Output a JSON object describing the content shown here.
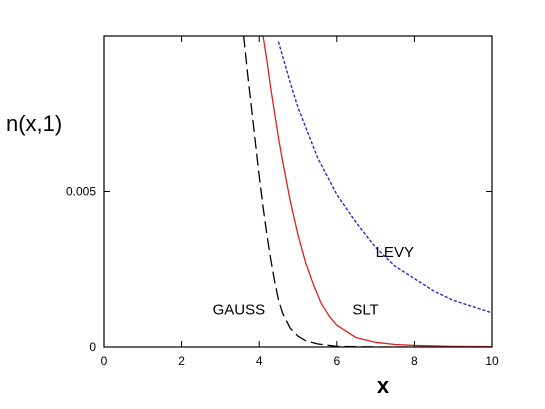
{
  "chart_data": {
    "type": "line",
    "title": "",
    "xlabel": "x",
    "ylabel": "n(x,1)",
    "xlim": [
      0,
      10
    ],
    "ylim": [
      0,
      0.01
    ],
    "grid": false,
    "x_ticks": [
      {
        "value": 0,
        "label": "0"
      },
      {
        "value": 2,
        "label": "2"
      },
      {
        "value": 4,
        "label": "4"
      },
      {
        "value": 6,
        "label": "6"
      },
      {
        "value": 8,
        "label": "8"
      },
      {
        "value": 10,
        "label": "10"
      }
    ],
    "y_ticks": [
      {
        "value": 0,
        "label": "0"
      },
      {
        "value": 0.005,
        "label": "0.005"
      }
    ],
    "series": [
      {
        "name": "GAUSS",
        "color": "#000000",
        "style": "dashed",
        "x": [
          3.6,
          3.7,
          3.8,
          3.9,
          4.0,
          4.1,
          4.2,
          4.3,
          4.4,
          4.5,
          4.6,
          4.8,
          5.0,
          5.2,
          5.5,
          5.8,
          6.0,
          6.5,
          7.0,
          8.0,
          9.0,
          10.0
        ],
        "y": [
          0.01,
          0.0088,
          0.0077,
          0.0066,
          0.0055,
          0.0045,
          0.0036,
          0.0028,
          0.0021,
          0.0015,
          0.0011,
          0.0006,
          0.00035,
          0.0002,
          0.0001,
          5e-05,
          2e-05,
          1e-05,
          0.0,
          0.0,
          0.0,
          0.0
        ]
      },
      {
        "name": "SLT",
        "color": "#e02020",
        "style": "solid",
        "x": [
          4.1,
          4.2,
          4.3,
          4.4,
          4.5,
          4.6,
          4.8,
          5.0,
          5.2,
          5.4,
          5.6,
          5.8,
          6.0,
          6.5,
          7.0,
          7.5,
          8.0,
          9.0,
          10.0
        ],
        "y": [
          0.01,
          0.0092,
          0.0083,
          0.0075,
          0.0067,
          0.006,
          0.0047,
          0.0036,
          0.0027,
          0.002,
          0.0014,
          0.001,
          0.0007,
          0.0003,
          0.00015,
          8e-05,
          5e-05,
          2e-05,
          1e-05
        ]
      },
      {
        "name": "LEVY",
        "color": "#2a2acc",
        "style": "dotted",
        "x": [
          4.5,
          4.8,
          5.0,
          5.5,
          6.0,
          6.5,
          7.0,
          7.5,
          8.0,
          8.5,
          9.0,
          9.5,
          10.0
        ],
        "y": [
          0.0098,
          0.0085,
          0.0077,
          0.0061,
          0.0049,
          0.004,
          0.0032,
          0.0026,
          0.0022,
          0.0018,
          0.0015,
          0.0013,
          0.0011
        ]
      }
    ],
    "annotations": [
      {
        "text": "GAUSS",
        "x": 2.8,
        "y": 0.00105
      },
      {
        "text": "SLT",
        "x": 6.4,
        "y": 0.00105
      },
      {
        "text": "LEVY",
        "x": 7.0,
        "y": 0.0029
      }
    ]
  }
}
